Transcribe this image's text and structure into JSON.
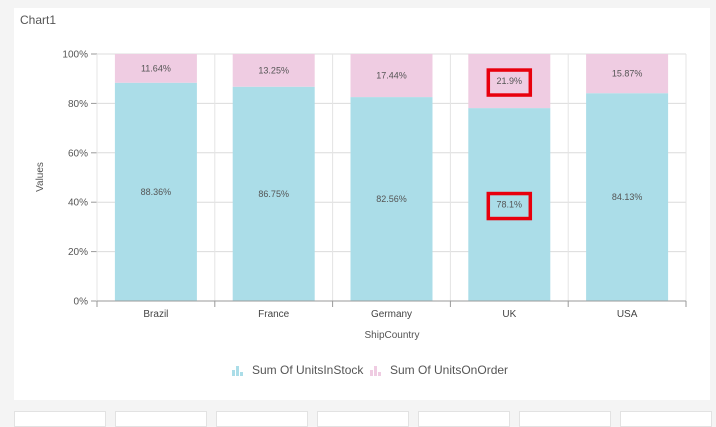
{
  "chart_data": {
    "type": "bar",
    "stacked": "percent",
    "title": "Chart1",
    "xlabel": "ShipCountry",
    "ylabel": "Values",
    "ylim": [
      0,
      100
    ],
    "yticks": [
      "0%",
      "20%",
      "40%",
      "60%",
      "80%",
      "100%"
    ],
    "grid": true,
    "legend": "bottom",
    "categories": [
      "Brazil",
      "France",
      "Germany",
      "UK",
      "USA"
    ],
    "series": [
      {
        "name": "Sum Of UnitsInStock",
        "color": "#abdde8",
        "values": [
          88.36,
          86.75,
          82.56,
          78.1,
          84.13
        ],
        "labels": [
          "88.36%",
          "86.75%",
          "82.56%",
          "78.1%",
          "84.13%"
        ]
      },
      {
        "name": "Sum Of UnitsOnOrder",
        "color": "#efcce2",
        "values": [
          11.64,
          13.25,
          17.44,
          21.9,
          15.87
        ],
        "labels": [
          "11.64%",
          "13.25%",
          "17.44%",
          "21.9%",
          "15.87%"
        ]
      }
    ],
    "highlighted": [
      {
        "category": "UK",
        "series": "Sum Of UnitsInStock",
        "color": "#e8000d"
      },
      {
        "category": "UK",
        "series": "Sum Of UnitsOnOrder",
        "color": "#e8000d"
      }
    ]
  }
}
